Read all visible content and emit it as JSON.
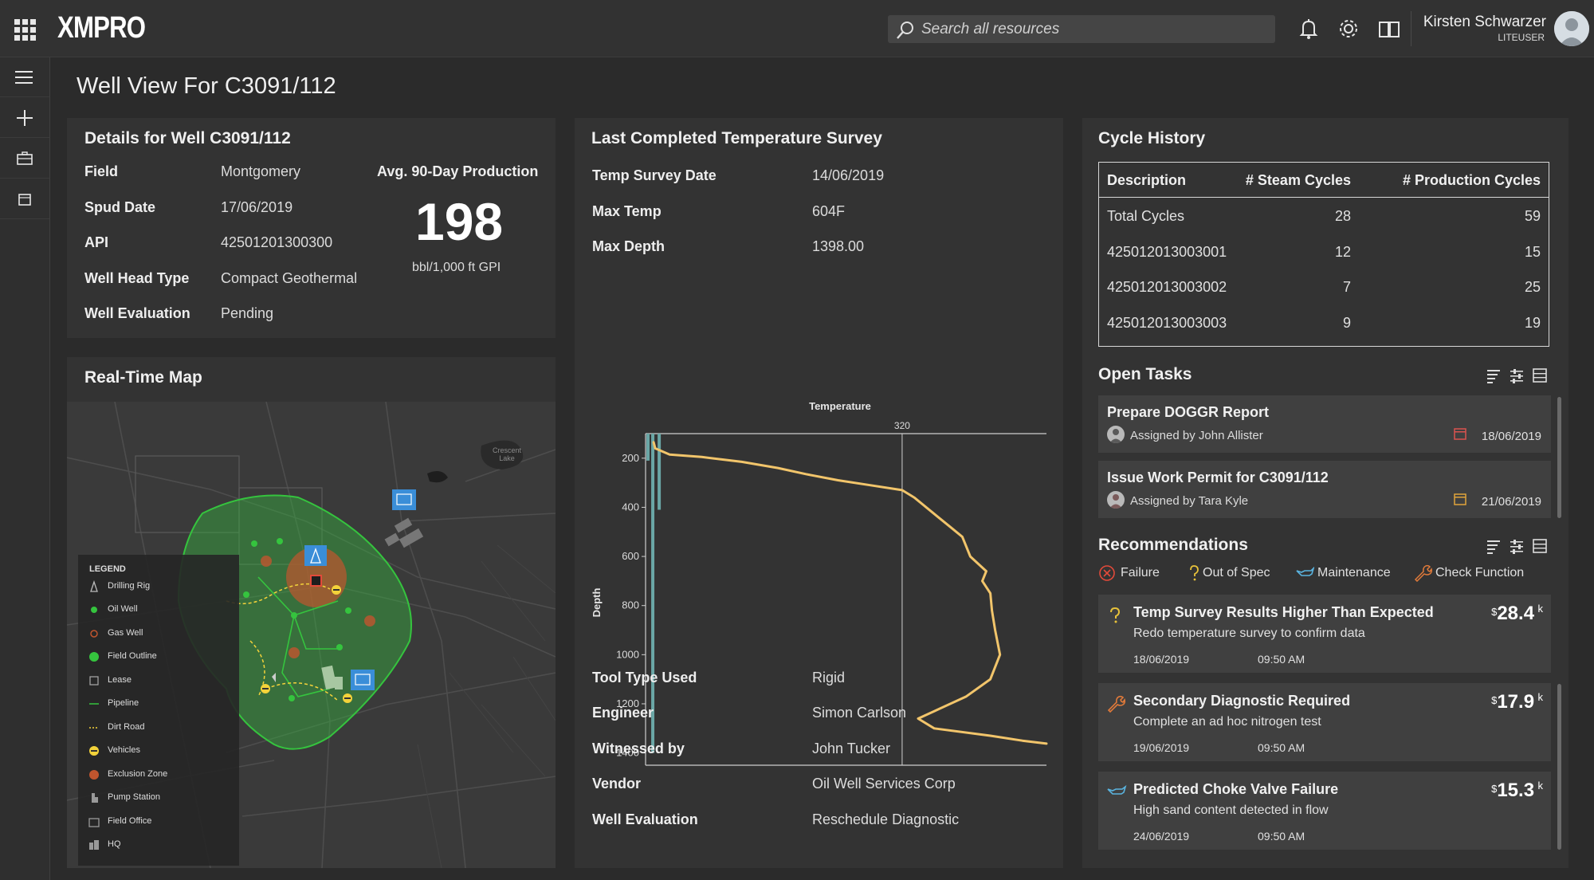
{
  "header": {
    "logo": "XMPRO",
    "search_placeholder": "Search all resources",
    "user_name": "Kirsten Schwarzer",
    "user_role": "LITEUSER"
  },
  "page": {
    "title": "Well View For C3091/112"
  },
  "details": {
    "title": "Details for Well C3091/112",
    "rows": [
      {
        "label": "Field",
        "value": "Montgomery"
      },
      {
        "label": "Spud Date",
        "value": "17/06/2019"
      },
      {
        "label": "API",
        "value": "42501201300300"
      },
      {
        "label": "Well Head Type",
        "value": "Compact Geothermal"
      },
      {
        "label": "Well Evaluation",
        "value": "Pending"
      }
    ],
    "production_label": "Avg. 90-Day Production",
    "production_value": "198",
    "production_unit": "bbl/1,000 ft GPI"
  },
  "map": {
    "title": "Real-Time Map",
    "place_label": "Crescent Lake",
    "legend_title": "LEGEND",
    "legend": [
      "Drilling Rig",
      "Oil Well",
      "Gas Well",
      "Field Outline",
      "Lease",
      "Pipeline",
      "Dirt Road",
      "Vehicles",
      "Exclusion Zone",
      "Pump Station",
      "Field Office",
      "HQ"
    ]
  },
  "survey": {
    "title": "Last Completed Temperature Survey",
    "top_rows": [
      {
        "label": "Temp Survey Date",
        "value": "14/06/2019"
      },
      {
        "label": "Max Temp",
        "value": "604F"
      },
      {
        "label": "Max Depth",
        "value": "1398.00"
      }
    ],
    "bottom_rows": [
      {
        "label": "Tool Type Used",
        "value": "Rigid"
      },
      {
        "label": "Engineer",
        "value": "Simon Carlson"
      },
      {
        "label": "Witnessed by",
        "value": "John Tucker"
      },
      {
        "label": "Vendor",
        "value": "Oil Well Services Corp"
      },
      {
        "label": "Well Evaluation",
        "value": "Reschedule Diagnostic"
      }
    ]
  },
  "chart_data": {
    "type": "line",
    "title": "Temperature",
    "xlabel": "",
    "ylabel": "Depth",
    "y_reversed": true,
    "ylim": [
      100,
      1450
    ],
    "xlim": [
      0,
      500
    ],
    "y_ticks": [
      200,
      400,
      600,
      800,
      1000,
      1200,
      1400
    ],
    "reference_line": {
      "x": 320,
      "label": "320"
    },
    "color": "#f2c56b",
    "series": [
      {
        "points": [
          [
            10,
            135
          ],
          [
            12,
            160
          ],
          [
            30,
            185
          ],
          [
            70,
            195
          ],
          [
            120,
            215
          ],
          [
            165,
            240
          ],
          [
            200,
            265
          ],
          [
            240,
            290
          ],
          [
            280,
            310
          ],
          [
            320,
            330
          ],
          [
            335,
            360
          ],
          [
            350,
            400
          ],
          [
            365,
            440
          ],
          [
            380,
            480
          ],
          [
            395,
            520
          ],
          [
            400,
            560
          ],
          [
            405,
            600
          ],
          [
            425,
            660
          ],
          [
            420,
            700
          ],
          [
            430,
            750
          ],
          [
            432,
            820
          ],
          [
            436,
            900
          ],
          [
            442,
            1000
          ],
          [
            430,
            1100
          ],
          [
            400,
            1170
          ],
          [
            360,
            1230
          ],
          [
            340,
            1260
          ],
          [
            360,
            1300
          ],
          [
            430,
            1330
          ],
          [
            470,
            1350
          ],
          [
            500,
            1362
          ]
        ]
      }
    ],
    "depth_bars": [
      {
        "x": 3,
        "from": 100,
        "to": 210
      },
      {
        "x": 9,
        "from": 100,
        "to": 1400
      },
      {
        "x": 17,
        "from": 100,
        "to": 410
      }
    ]
  },
  "cycle_history": {
    "title": "Cycle History",
    "columns": [
      "Description",
      "# Steam Cycles",
      "# Production Cycles"
    ],
    "rows": [
      {
        "desc": "Total Cycles",
        "steam": "28",
        "prod": "59"
      },
      {
        "desc": "425012013003001",
        "steam": "12",
        "prod": "15"
      },
      {
        "desc": "425012013003002",
        "steam": "7",
        "prod": "25"
      },
      {
        "desc": "425012013003003",
        "steam": "9",
        "prod": "19"
      }
    ]
  },
  "tasks": {
    "title": "Open Tasks",
    "items": [
      {
        "title": "Prepare DOGGR Report",
        "assigned": "Assigned by John Allister",
        "date": "18/06/2019",
        "cal_color": "#d9534f"
      },
      {
        "title": "Issue Work Permit for C3091/112",
        "assigned": "Assigned by Tara Kyle",
        "date": "21/06/2019",
        "cal_color": "#e0a43a"
      }
    ]
  },
  "recommendations": {
    "title": "Recommendations",
    "filters": [
      "Failure",
      "Out of Spec",
      "Maintenance",
      "Check Function"
    ],
    "items": [
      {
        "title": "Temp Survey Results Higher Than Expected",
        "desc": "Redo temperature survey to confirm data",
        "date": "18/06/2019",
        "time": "09:50 AM",
        "currency": "$",
        "cost": "28.4",
        "unit": "k",
        "icon": "question-icon"
      },
      {
        "title": "Secondary Diagnostic Required",
        "desc": "Complete an ad hoc nitrogen test",
        "date": "19/06/2019",
        "time": "09:50 AM",
        "currency": "$",
        "cost": "17.9",
        "unit": "k",
        "icon": "wrench-icon"
      },
      {
        "title": "Predicted Choke Valve Failure",
        "desc": "High sand content detected in flow",
        "date": "24/06/2019",
        "time": "09:50 AM",
        "currency": "$",
        "cost": "15.3",
        "unit": "k",
        "icon": "oil-can-icon"
      }
    ]
  },
  "colors": {
    "accent_green": "#35c43e",
    "vehicle_yellow": "#f3d23a",
    "exclusion": "#c0552e",
    "map_blue": "#3a8ed8",
    "chart_line": "#f2c56b",
    "depth_bar": "#6aa7a6"
  }
}
